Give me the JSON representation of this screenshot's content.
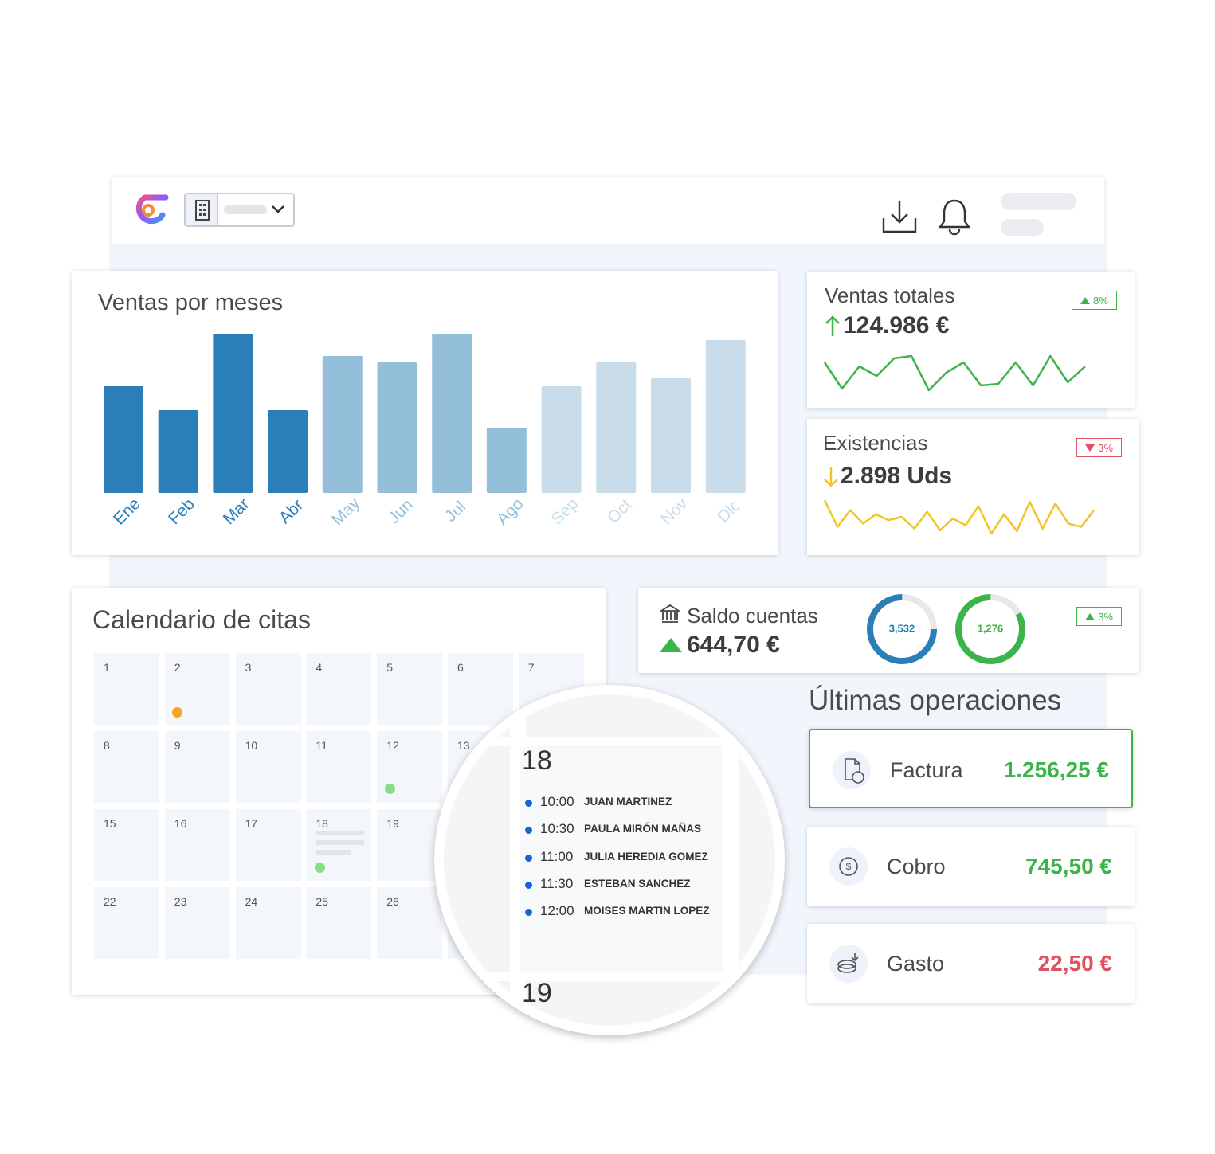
{
  "chart_data": [
    {
      "type": "bar",
      "title": "Ventas por meses",
      "categories": [
        "Ene",
        "Feb",
        "Mar",
        "Abr",
        "May",
        "Jun",
        "Jul",
        "Ago",
        "Sep",
        "Oct",
        "Nov",
        "Dic"
      ],
      "values": [
        134,
        104,
        200,
        104,
        172,
        164,
        200,
        82,
        134,
        164,
        144,
        192
      ],
      "colors": [
        "#2a7fb8",
        "#2a7fb8",
        "#2a7fb8",
        "#2a7fb8",
        "#94bfdb",
        "#94bfdb",
        "#94bfdb",
        "#94bfdb",
        "#c8dde9",
        "#c8dde9",
        "#c8dde9",
        "#c8dde9"
      ]
    },
    {
      "type": "line",
      "title": "Ventas totales",
      "total": "124.986 €",
      "change": "8%",
      "trend": "up",
      "color": "#3bb54a",
      "values": [
        45,
        12,
        40,
        28,
        50,
        53,
        10,
        32,
        45,
        16,
        18,
        45,
        16,
        53,
        20,
        40
      ]
    },
    {
      "type": "line",
      "title": "Existencias",
      "total": "2.898 Uds",
      "change": "3%",
      "trend": "down",
      "color": "#f2c526",
      "values": [
        42,
        10,
        30,
        14,
        25,
        18,
        22,
        8,
        28,
        6,
        20,
        12,
        35,
        2,
        25,
        5,
        40,
        8,
        38,
        14,
        10,
        30
      ]
    }
  ],
  "balance": {
    "title": "Saldo cuentas",
    "value": "644,70 €",
    "change": "3%",
    "rings": [
      {
        "label": "3,532",
        "fill": 75,
        "color": "#2a7fb8"
      },
      {
        "label": "1,276",
        "fill": 83,
        "color": "#3bb54a"
      }
    ]
  },
  "calendar": {
    "title": "Calendario de citas",
    "rows": [
      [
        1,
        2,
        3,
        4,
        5,
        6,
        7
      ],
      [
        8,
        9,
        10,
        11,
        12,
        13
      ],
      [
        15,
        16,
        17,
        18,
        19
      ],
      [
        22,
        23,
        24,
        25,
        26
      ]
    ]
  },
  "zoom": {
    "day": "18",
    "next_day": "19",
    "appointments": [
      {
        "time": "10:00",
        "name": "JUAN MARTINEZ"
      },
      {
        "time": "10:30",
        "name": "PAULA MIRÓN MAÑAS"
      },
      {
        "time": "11:00",
        "name": "JULIA HEREDIA GOMEZ"
      },
      {
        "time": "11:30",
        "name": "ESTEBAN SANCHEZ"
      },
      {
        "time": "12:00",
        "name": "MOISES MARTIN LOPEZ"
      }
    ]
  },
  "operations": {
    "title": "Últimas operaciones",
    "items": [
      {
        "label": "Factura",
        "amount": "1.256,25 €",
        "color": "#3bb54a"
      },
      {
        "label": "Cobro",
        "amount": "745,50 €",
        "color": "#3bb54a"
      },
      {
        "label": "Gasto",
        "amount": "22,50 €",
        "color": "#e0505e"
      }
    ]
  }
}
